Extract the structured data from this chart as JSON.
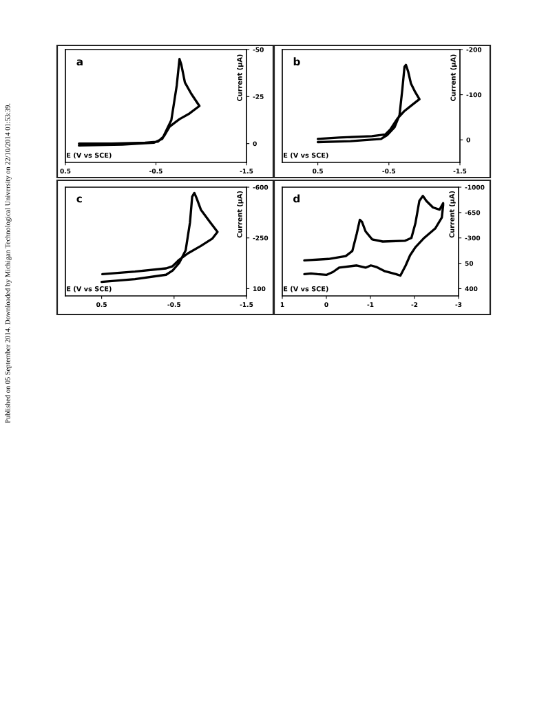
{
  "chart_data": [
    {
      "type": "line",
      "title": "a",
      "xlabel": "E (V vs SCE)",
      "ylabel": "Current (µA)",
      "xlim": [
        0.5,
        -1.5
      ],
      "xticks": [
        0.5,
        -0.5,
        -1.5
      ],
      "ylim": [
        10,
        -50
      ],
      "yticks": [
        -50,
        -25,
        0
      ],
      "annotations": [
        "Published on 05 September 2014. Downloaded by Michigan Technological University on 22/10/2014 01:53:39."
      ],
      "series": [
        {
          "color": "#000000",
          "x": [
            0.35,
            -0.13,
            -0.48,
            -0.57,
            -0.67,
            -0.73,
            -0.76,
            -0.78,
            -0.82,
            -0.89,
            -0.98,
            -0.87,
            -0.76,
            -0.65,
            -0.59,
            -0.52,
            -0.38,
            -0.01,
            0.35
          ],
          "values": [
            1,
            0.5,
            -0.5,
            -2.5,
            -12.5,
            -31,
            -45,
            -42,
            -32.5,
            -26.5,
            -20,
            -16,
            -13,
            -9,
            -4,
            -1,
            -0.5,
            0,
            0
          ]
        }
      ]
    },
    {
      "type": "line",
      "title": "b",
      "xlabel": "E (V vs SCE)",
      "ylabel": "Current (µA)",
      "xlim": [
        1.0,
        -1.5
      ],
      "xticks": [
        0.5,
        -0.5,
        -1.5
      ],
      "ylim": [
        50,
        -200
      ],
      "yticks": [
        -200,
        -100,
        0
      ],
      "series": [
        {
          "color": "#000000",
          "x": [
            0.5,
            0.04,
            -0.39,
            -0.48,
            -0.58,
            -0.65,
            -0.69,
            -0.72,
            -0.74,
            -0.77,
            -0.81,
            -0.87,
            -0.93,
            -0.84,
            -0.72,
            -0.62,
            -0.52,
            -0.45,
            -0.26,
            0.2,
            0.5
          ],
          "values": [
            5,
            3,
            -2,
            -11,
            -28,
            -55,
            -113,
            -162,
            -166,
            -152,
            -125,
            -106,
            -90,
            -79,
            -64,
            -47,
            -23,
            -12,
            -8,
            -5,
            -2
          ]
        }
      ]
    },
    {
      "type": "line",
      "title": "c",
      "xlabel": "E (V vs SCE)",
      "ylabel": "Current (µA)",
      "xlim": [
        1.0,
        -1.5
      ],
      "xticks": [
        0.5,
        -0.5,
        -1.5
      ],
      "ylim": [
        150,
        -600
      ],
      "yticks": [
        -600,
        -250,
        100
      ],
      "series": [
        {
          "color": "#000000",
          "x": [
            0.5,
            0.04,
            -0.39,
            -0.48,
            -0.57,
            -0.66,
            -0.72,
            -0.75,
            -0.78,
            -0.81,
            -0.87,
            -1.0,
            -1.1,
            -1.03,
            -0.87,
            -0.69,
            -0.57,
            -0.48,
            -0.39,
            0.04,
            0.49
          ],
          "values": [
            53,
            34,
            4,
            -25,
            -77,
            -165,
            -357,
            -534,
            -560,
            -526,
            -445,
            -357,
            -291,
            -246,
            -195,
            -143,
            -99,
            -55,
            -40,
            -18,
            0
          ]
        }
      ]
    },
    {
      "type": "line",
      "title": "d",
      "xlabel": "E (V vs SCE)",
      "ylabel": "Current (µA)",
      "xlim": [
        1,
        -3
      ],
      "xticks": [
        1,
        0,
        -1,
        -2,
        -3
      ],
      "ylim": [
        500,
        -1000
      ],
      "yticks": [
        -1000,
        -650,
        -300,
        50,
        400
      ],
      "series": [
        {
          "color": "#000000",
          "x": [
            0.5,
            -0.05,
            -0.44,
            -0.59,
            -0.69,
            -0.76,
            -0.81,
            -0.89,
            -1.04,
            -1.28,
            -1.78,
            -1.93,
            -2.02,
            -2.11,
            -2.19,
            -2.27,
            -2.42,
            -2.57,
            -2.65,
            -2.65,
            -2.62,
            -2.47,
            -2.22,
            -2.02,
            -1.9,
            -1.8,
            -1.68,
            -1.58,
            -1.33,
            -1.13,
            -1.01,
            -0.89,
            -0.69,
            -0.29,
            -0.15,
            0,
            0.2,
            0.35,
            0.5
          ],
          "values": [
            10,
            -10,
            -50,
            -120,
            -360,
            -550,
            -520,
            -390,
            -280,
            -250,
            -260,
            -300,
            -500,
            -810,
            -880,
            -810,
            -720,
            -690,
            -780,
            -750,
            -580,
            -430,
            -300,
            -170,
            -60,
            80,
            220,
            200,
            160,
            100,
            80,
            110,
            80,
            110,
            170,
            210,
            200,
            190,
            200
          ]
        }
      ]
    }
  ]
}
